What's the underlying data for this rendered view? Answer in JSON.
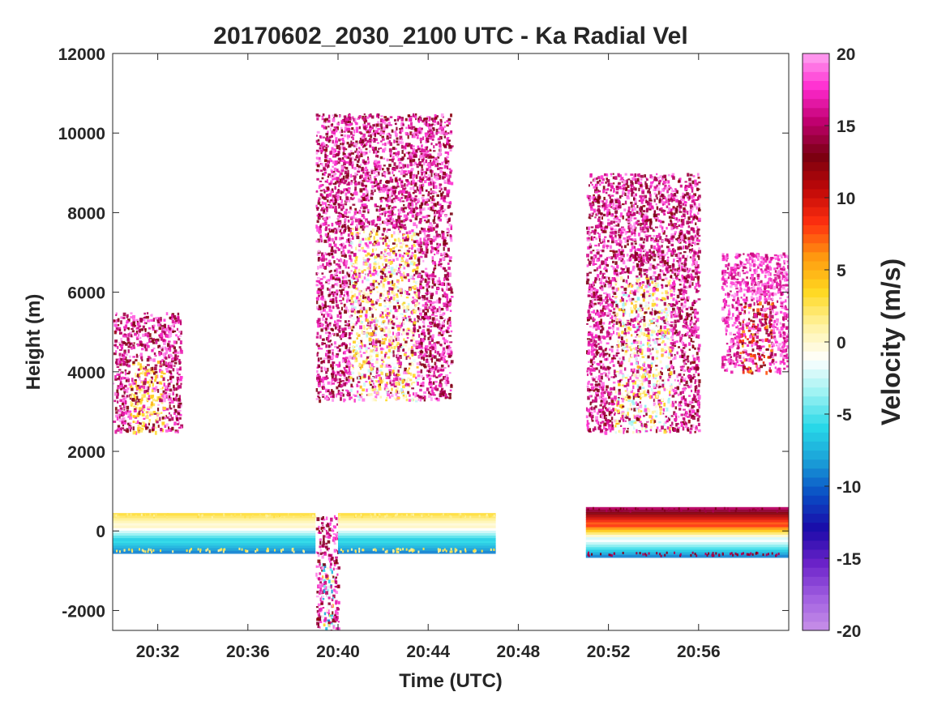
{
  "chart_data": {
    "type": "heatmap",
    "title": "20170602_2030_2100 UTC - Ka Radial Vel",
    "xlabel": "Time (UTC)",
    "ylabel": "Height (m)",
    "x_range": [
      "20:30",
      "21:00"
    ],
    "x_ticks": [
      "20:32",
      "20:36",
      "20:40",
      "20:44",
      "20:48",
      "20:52",
      "20:56"
    ],
    "ylim": [
      -2500,
      12000
    ],
    "y_ticks": [
      "-2000",
      "0",
      "2000",
      "4000",
      "6000",
      "8000",
      "10000",
      "12000"
    ],
    "colorbar": {
      "label": "Velocity (m/s)",
      "range": [
        -20,
        20
      ],
      "ticks": [
        "-20",
        "-15",
        "-10",
        "-5",
        "0",
        "5",
        "10",
        "15",
        "20"
      ],
      "colors": [
        "#c891e8",
        "#a05ee0",
        "#6a22c8",
        "#1a0aa8",
        "#0a4cc4",
        "#1aa0d8",
        "#28d8e8",
        "#9cf2f2",
        "#ffffff",
        "#fff2a0",
        "#ffd820",
        "#ff9a10",
        "#ff3010",
        "#c00808",
        "#780010",
        "#c0006e",
        "#ff2ad0",
        "#ffa4f2"
      ]
    },
    "echoes": [
      {
        "feature": "ground clutter band",
        "time_start": "20:30",
        "time_end": "20:39",
        "height_min": -500,
        "height_max": 450,
        "velocity_range": [
          -9,
          3
        ]
      },
      {
        "feature": "instrument dip",
        "time_start": "20:39",
        "time_end": "20:40",
        "height_min": -2500,
        "height_max": 400,
        "velocity_range": [
          -10,
          20
        ]
      },
      {
        "feature": "ground clutter band",
        "time_start": "20:40",
        "time_end": "20:47",
        "height_min": -500,
        "height_max": 450,
        "velocity_range": [
          -9,
          3
        ]
      },
      {
        "feature": "ground clutter band",
        "time_start": "20:51",
        "time_end": "21:00",
        "height_min": -600,
        "height_max": 600,
        "velocity_range": [
          -9,
          15
        ]
      },
      {
        "feature": "low cloud",
        "time_start": "20:30",
        "time_end": "20:33",
        "height_min": 2500,
        "height_max": 5500,
        "velocity_range": [
          1,
          20
        ]
      },
      {
        "feature": "convective cloud",
        "time_start": "20:39",
        "time_end": "20:45",
        "height_min": 3300,
        "height_max": 10500,
        "velocity_range": [
          -3,
          20
        ]
      },
      {
        "feature": "mid-level cloud",
        "time_start": "20:51",
        "time_end": "20:56",
        "height_min": 2500,
        "height_max": 9000,
        "velocity_range": [
          -4,
          20
        ]
      },
      {
        "feature": "mid-level cloud",
        "time_start": "20:57",
        "time_end": "21:00",
        "height_min": 4000,
        "height_max": 7000,
        "velocity_range": [
          15,
          20
        ]
      }
    ]
  }
}
